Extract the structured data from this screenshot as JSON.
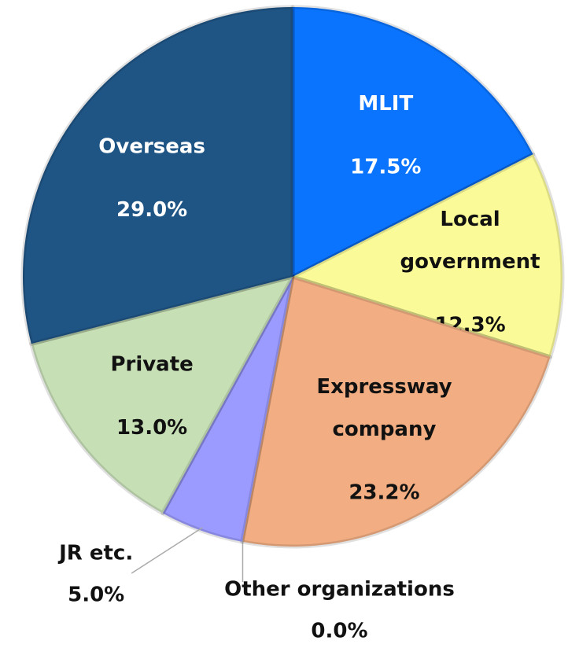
{
  "chart_data": {
    "type": "pie",
    "categories": [
      "MLIT",
      "Local government",
      "Expressway company",
      "Other organizations",
      "JR etc.",
      "Private",
      "Overseas"
    ],
    "values": [
      17.5,
      12.3,
      23.2,
      0.0,
      5.0,
      13.0,
      29.0
    ],
    "value_labels": [
      "17.5%",
      "12.3%",
      "23.2%",
      "0.0%",
      "5.0%",
      "13.0%",
      "29.0%"
    ],
    "colors": [
      "#0a74ff",
      "#fafa98",
      "#f2ae82",
      "#8f8fd8",
      "#9a9aff",
      "#c6dfb5",
      "#1f5585"
    ]
  }
}
